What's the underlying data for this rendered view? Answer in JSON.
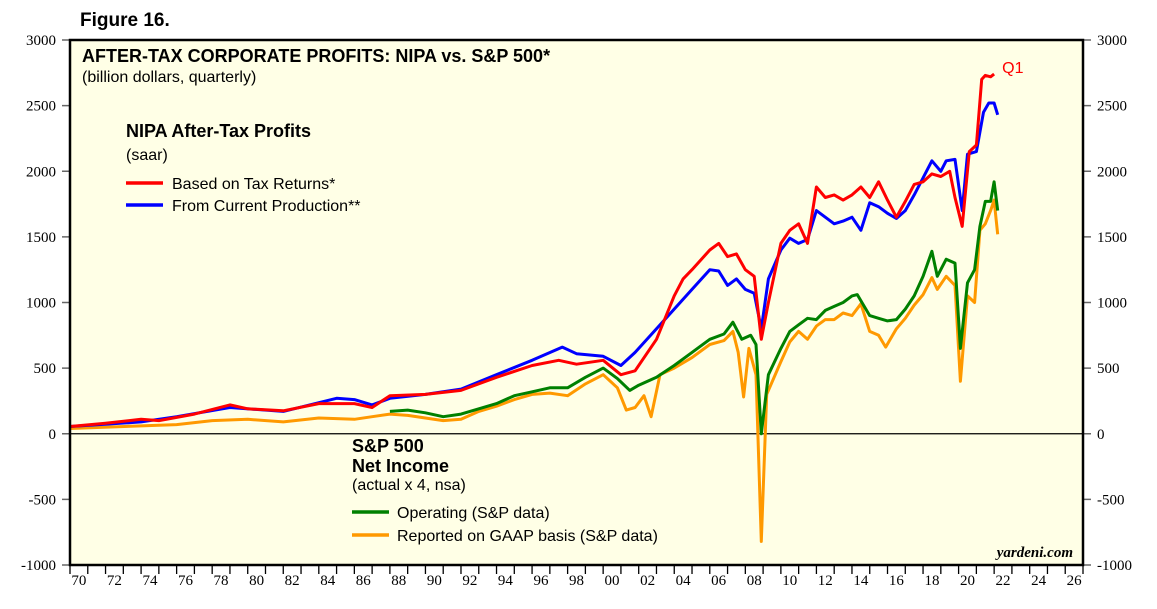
{
  "figure_label": "Figure 16.",
  "chart_data": {
    "type": "line",
    "title": "AFTER-TAX CORPORATE PROFITS: NIPA vs. S&P 500*",
    "subtitle": "(billion dollars, quarterly)",
    "ylim": [
      -1000,
      3000
    ],
    "xlim": [
      1970,
      2027
    ],
    "y_ticks": [
      "-1000",
      "-500",
      "0",
      "500",
      "1000",
      "1500",
      "2000",
      "2500",
      "3000"
    ],
    "x_tick_labels": [
      "70",
      "72",
      "74",
      "76",
      "78",
      "80",
      "82",
      "84",
      "86",
      "88",
      "90",
      "92",
      "94",
      "96",
      "98",
      "00",
      "02",
      "04",
      "06",
      "08",
      "10",
      "12",
      "14",
      "16",
      "18",
      "20",
      "22",
      "24",
      "26"
    ],
    "grid": false,
    "legend_groups": [
      {
        "heading": "NIPA After-Tax Profits",
        "note": "(saar)"
      },
      {
        "heading": "S&P 500",
        "heading2": "Net Income",
        "note": "(actual x 4, nsa)"
      }
    ],
    "annotation": "Q1",
    "watermark": "yardeni.com",
    "series": [
      {
        "name": "Based on Tax Returns*",
        "color": "#ff0000",
        "points": [
          [
            1970,
            55
          ],
          [
            1972,
            80
          ],
          [
            1974,
            110
          ],
          [
            1975,
            100
          ],
          [
            1977,
            150
          ],
          [
            1979,
            220
          ],
          [
            1980,
            190
          ],
          [
            1982,
            175
          ],
          [
            1984,
            230
          ],
          [
            1986,
            230
          ],
          [
            1987,
            200
          ],
          [
            1988,
            290
          ],
          [
            1990,
            300
          ],
          [
            1992,
            330
          ],
          [
            1994,
            430
          ],
          [
            1996,
            520
          ],
          [
            1997.5,
            560
          ],
          [
            1998.5,
            530
          ],
          [
            2000,
            560
          ],
          [
            2001,
            450
          ],
          [
            2001.8,
            480
          ],
          [
            2003,
            720
          ],
          [
            2004,
            1050
          ],
          [
            2004.5,
            1180
          ],
          [
            2005,
            1250
          ],
          [
            2006,
            1400
          ],
          [
            2006.5,
            1450
          ],
          [
            2007,
            1350
          ],
          [
            2007.5,
            1370
          ],
          [
            2008,
            1250
          ],
          [
            2008.5,
            1200
          ],
          [
            2008.9,
            720
          ],
          [
            2009.3,
            1000
          ],
          [
            2010,
            1450
          ],
          [
            2010.5,
            1550
          ],
          [
            2011,
            1600
          ],
          [
            2011.5,
            1450
          ],
          [
            2012,
            1880
          ],
          [
            2012.5,
            1800
          ],
          [
            2013,
            1820
          ],
          [
            2013.5,
            1780
          ],
          [
            2014,
            1820
          ],
          [
            2014.5,
            1880
          ],
          [
            2015,
            1800
          ],
          [
            2015.5,
            1920
          ],
          [
            2016,
            1780
          ],
          [
            2016.5,
            1650
          ],
          [
            2017,
            1770
          ],
          [
            2017.5,
            1900
          ],
          [
            2018,
            1920
          ],
          [
            2018.5,
            1980
          ],
          [
            2019,
            1960
          ],
          [
            2019.5,
            2000
          ],
          [
            2019.8,
            1800
          ],
          [
            2020.2,
            1580
          ],
          [
            2020.6,
            2150
          ],
          [
            2021,
            2200
          ],
          [
            2021.3,
            2700
          ],
          [
            2021.5,
            2730
          ],
          [
            2021.8,
            2720
          ],
          [
            2022,
            2740
          ]
        ]
      },
      {
        "name": "From Current Production**",
        "color": "#0000ff",
        "points": [
          [
            1970,
            55
          ],
          [
            1974,
            90
          ],
          [
            1976,
            130
          ],
          [
            1979,
            200
          ],
          [
            1982,
            170
          ],
          [
            1985,
            270
          ],
          [
            1986,
            260
          ],
          [
            1987,
            220
          ],
          [
            1988,
            270
          ],
          [
            1990,
            300
          ],
          [
            1992,
            340
          ],
          [
            1994,
            450
          ],
          [
            1996,
            560
          ],
          [
            1997.7,
            660
          ],
          [
            1998.5,
            610
          ],
          [
            2000,
            590
          ],
          [
            2001,
            520
          ],
          [
            2001.8,
            620
          ],
          [
            2003,
            800
          ],
          [
            2004,
            950
          ],
          [
            2005,
            1100
          ],
          [
            2006,
            1250
          ],
          [
            2006.5,
            1240
          ],
          [
            2007,
            1130
          ],
          [
            2007.5,
            1180
          ],
          [
            2008,
            1100
          ],
          [
            2008.5,
            1070
          ],
          [
            2008.9,
            800
          ],
          [
            2009.3,
            1180
          ],
          [
            2010,
            1400
          ],
          [
            2010.5,
            1490
          ],
          [
            2011,
            1450
          ],
          [
            2011.5,
            1480
          ],
          [
            2012,
            1700
          ],
          [
            2012.5,
            1650
          ],
          [
            2013,
            1600
          ],
          [
            2013.5,
            1620
          ],
          [
            2014,
            1650
          ],
          [
            2014.5,
            1550
          ],
          [
            2015,
            1760
          ],
          [
            2015.5,
            1730
          ],
          [
            2016,
            1680
          ],
          [
            2016.5,
            1640
          ],
          [
            2017,
            1700
          ],
          [
            2017.5,
            1820
          ],
          [
            2018,
            1950
          ],
          [
            2018.5,
            2080
          ],
          [
            2019,
            2000
          ],
          [
            2019.3,
            2080
          ],
          [
            2019.8,
            2090
          ],
          [
            2020.2,
            1700
          ],
          [
            2020.5,
            2130
          ],
          [
            2021,
            2150
          ],
          [
            2021.4,
            2450
          ],
          [
            2021.7,
            2520
          ],
          [
            2022,
            2520
          ],
          [
            2022.2,
            2430
          ]
        ]
      },
      {
        "name": "Operating (S&P data)",
        "color": "#008000",
        "points": [
          [
            1988,
            170
          ],
          [
            1989,
            180
          ],
          [
            1990,
            160
          ],
          [
            1991,
            130
          ],
          [
            1992,
            150
          ],
          [
            1993,
            190
          ],
          [
            1994,
            230
          ],
          [
            1995,
            290
          ],
          [
            1996,
            320
          ],
          [
            1997,
            350
          ],
          [
            1998,
            350
          ],
          [
            1999,
            430
          ],
          [
            2000,
            500
          ],
          [
            2000.8,
            420
          ],
          [
            2001.5,
            330
          ],
          [
            2002,
            370
          ],
          [
            2003,
            430
          ],
          [
            2004,
            520
          ],
          [
            2005,
            620
          ],
          [
            2006,
            720
          ],
          [
            2006.8,
            760
          ],
          [
            2007.3,
            850
          ],
          [
            2007.8,
            720
          ],
          [
            2008.3,
            750
          ],
          [
            2008.6,
            680
          ],
          [
            2008.9,
            0
          ],
          [
            2009.3,
            450
          ],
          [
            2010,
            650
          ],
          [
            2010.5,
            780
          ],
          [
            2011,
            830
          ],
          [
            2011.5,
            880
          ],
          [
            2012,
            870
          ],
          [
            2012.5,
            940
          ],
          [
            2013,
            970
          ],
          [
            2013.5,
            1000
          ],
          [
            2014,
            1050
          ],
          [
            2014.3,
            1060
          ],
          [
            2015,
            900
          ],
          [
            2015.5,
            880
          ],
          [
            2016,
            860
          ],
          [
            2016.5,
            870
          ],
          [
            2017,
            950
          ],
          [
            2017.5,
            1050
          ],
          [
            2018,
            1200
          ],
          [
            2018.5,
            1390
          ],
          [
            2018.8,
            1200
          ],
          [
            2019.3,
            1330
          ],
          [
            2019.8,
            1300
          ],
          [
            2020.1,
            650
          ],
          [
            2020.5,
            1150
          ],
          [
            2020.9,
            1250
          ],
          [
            2021.2,
            1580
          ],
          [
            2021.5,
            1770
          ],
          [
            2021.8,
            1770
          ],
          [
            2022,
            1920
          ],
          [
            2022.2,
            1700
          ]
        ]
      },
      {
        "name": "Reported on GAAP basis (S&P data)",
        "color": "#ff9900",
        "points": [
          [
            1970,
            40
          ],
          [
            1974,
            60
          ],
          [
            1976,
            70
          ],
          [
            1978,
            100
          ],
          [
            1980,
            110
          ],
          [
            1982,
            90
          ],
          [
            1984,
            120
          ],
          [
            1986,
            110
          ],
          [
            1987,
            130
          ],
          [
            1988,
            150
          ],
          [
            1989,
            140
          ],
          [
            1990,
            120
          ],
          [
            1991,
            100
          ],
          [
            1992,
            110
          ],
          [
            1993,
            170
          ],
          [
            1994,
            210
          ],
          [
            1995,
            260
          ],
          [
            1996,
            300
          ],
          [
            1997,
            310
          ],
          [
            1998,
            290
          ],
          [
            1999,
            380
          ],
          [
            2000,
            450
          ],
          [
            2000.8,
            350
          ],
          [
            2001.3,
            180
          ],
          [
            2001.8,
            200
          ],
          [
            2002.3,
            290
          ],
          [
            2002.7,
            130
          ],
          [
            2003.2,
            450
          ],
          [
            2004,
            500
          ],
          [
            2005,
            580
          ],
          [
            2006,
            680
          ],
          [
            2006.8,
            710
          ],
          [
            2007.3,
            780
          ],
          [
            2007.6,
            620
          ],
          [
            2007.9,
            280
          ],
          [
            2008.2,
            650
          ],
          [
            2008.6,
            450
          ],
          [
            2008.9,
            -820
          ],
          [
            2009.2,
            300
          ],
          [
            2010,
            550
          ],
          [
            2010.5,
            700
          ],
          [
            2011,
            780
          ],
          [
            2011.5,
            720
          ],
          [
            2012,
            820
          ],
          [
            2012.5,
            870
          ],
          [
            2013,
            870
          ],
          [
            2013.5,
            920
          ],
          [
            2014,
            900
          ],
          [
            2014.5,
            990
          ],
          [
            2015,
            780
          ],
          [
            2015.5,
            750
          ],
          [
            2015.9,
            660
          ],
          [
            2016.5,
            800
          ],
          [
            2017,
            880
          ],
          [
            2017.5,
            980
          ],
          [
            2018,
            1060
          ],
          [
            2018.5,
            1190
          ],
          [
            2018.8,
            1100
          ],
          [
            2019.3,
            1200
          ],
          [
            2019.8,
            1130
          ],
          [
            2020.1,
            400
          ],
          [
            2020.5,
            1050
          ],
          [
            2020.9,
            1000
          ],
          [
            2021.2,
            1550
          ],
          [
            2021.5,
            1600
          ],
          [
            2021.8,
            1700
          ],
          [
            2022,
            1780
          ],
          [
            2022.2,
            1520
          ]
        ]
      }
    ]
  }
}
